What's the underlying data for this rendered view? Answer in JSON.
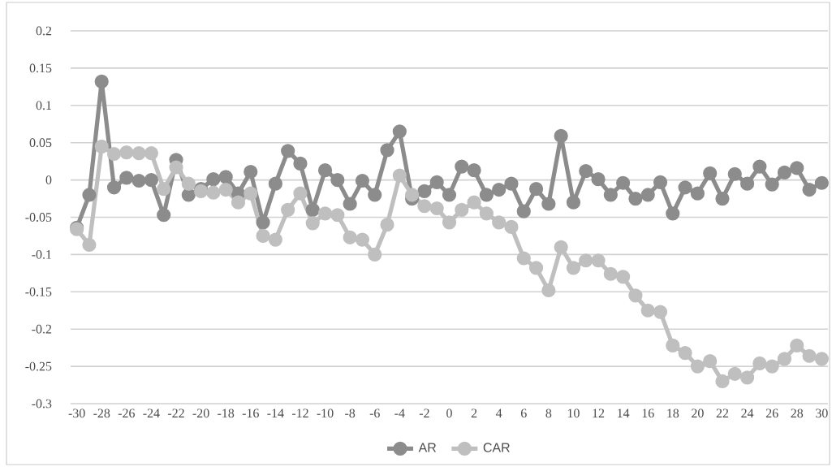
{
  "chart_data": {
    "type": "line",
    "categories": [
      "-30",
      null,
      "-28",
      null,
      "-26",
      null,
      "-24",
      null,
      "-22",
      null,
      "-20",
      null,
      "-18",
      null,
      "-16",
      null,
      "-14",
      null,
      "-12",
      null,
      "-10",
      null,
      "-8",
      null,
      "-6",
      null,
      "-4",
      null,
      "-2",
      null,
      "0",
      null,
      "2",
      null,
      "4",
      null,
      "6",
      null,
      "8",
      null,
      "10",
      null,
      "12",
      null,
      "14",
      null,
      "16",
      null,
      "18",
      null,
      "20",
      null,
      "22",
      null,
      "24",
      null,
      "26",
      null,
      "28",
      null,
      "30"
    ],
    "series": [
      {
        "name": "AR",
        "color": "#8c8c8c",
        "values": [
          -0.064,
          -0.02,
          0.132,
          -0.01,
          0.003,
          -0.001,
          0.0,
          -0.047,
          0.027,
          -0.02,
          -0.012,
          0.001,
          0.004,
          -0.018,
          0.011,
          -0.057,
          -0.005,
          0.039,
          0.022,
          -0.04,
          0.013,
          0.0,
          -0.032,
          -0.001,
          -0.02,
          0.04,
          0.065,
          -0.025,
          -0.015,
          -0.003,
          -0.02,
          0.018,
          0.013,
          -0.02,
          -0.013,
          -0.005,
          -0.042,
          -0.012,
          -0.032,
          0.059,
          -0.03,
          0.012,
          0.001,
          -0.02,
          -0.004,
          -0.025,
          -0.02,
          -0.003,
          -0.045,
          -0.01,
          -0.018,
          0.009,
          -0.025,
          0.008,
          -0.005,
          0.018,
          -0.006,
          0.01,
          0.016,
          -0.013,
          -0.004
        ]
      },
      {
        "name": "CAR",
        "color": "#bfbfbf",
        "values": [
          -0.066,
          -0.087,
          0.045,
          0.035,
          0.037,
          0.036,
          0.036,
          -0.012,
          0.017,
          -0.005,
          -0.015,
          -0.017,
          -0.013,
          -0.03,
          -0.018,
          -0.075,
          -0.08,
          -0.04,
          -0.018,
          -0.058,
          -0.045,
          -0.047,
          -0.077,
          -0.08,
          -0.1,
          -0.06,
          0.006,
          -0.02,
          -0.035,
          -0.038,
          -0.057,
          -0.04,
          -0.03,
          -0.045,
          -0.057,
          -0.063,
          -0.105,
          -0.118,
          -0.148,
          -0.09,
          -0.118,
          -0.108,
          -0.108,
          -0.126,
          -0.13,
          -0.155,
          -0.175,
          -0.177,
          -0.222,
          -0.232,
          -0.25,
          -0.243,
          -0.27,
          -0.26,
          -0.265,
          -0.246,
          -0.25,
          -0.24,
          -0.222,
          -0.236,
          -0.24
        ]
      }
    ],
    "ylim": [
      -0.3,
      0.2
    ],
    "yticks": [
      -0.3,
      -0.25,
      -0.2,
      -0.15,
      -0.1,
      -0.05,
      0,
      0.05,
      0.1,
      0.15,
      0.2
    ],
    "grid": "y",
    "legend": "bottom",
    "marker": "circle",
    "line_style": "solid"
  }
}
